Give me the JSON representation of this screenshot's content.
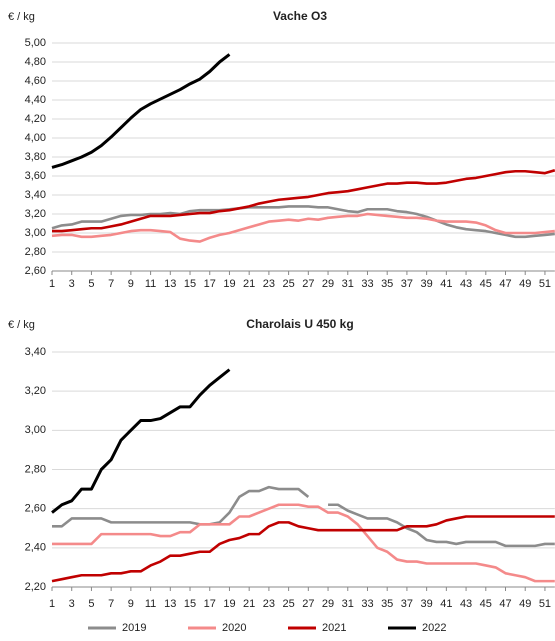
{
  "chart_data": [
    {
      "type": "line",
      "title": "Vache O3",
      "y_label": "€ / kg",
      "x": [
        1,
        2,
        3,
        4,
        5,
        6,
        7,
        8,
        9,
        10,
        11,
        12,
        13,
        14,
        15,
        16,
        17,
        18,
        19,
        20,
        21,
        22,
        23,
        24,
        25,
        26,
        27,
        28,
        29,
        30,
        31,
        32,
        33,
        34,
        35,
        36,
        37,
        38,
        39,
        40,
        41,
        42,
        43,
        44,
        45,
        46,
        47,
        48,
        49,
        50,
        51,
        52
      ],
      "xlim": [
        1,
        52
      ],
      "xticks": [
        1,
        3,
        5,
        7,
        9,
        11,
        13,
        15,
        17,
        19,
        21,
        23,
        25,
        27,
        29,
        31,
        33,
        35,
        37,
        39,
        41,
        43,
        45,
        47,
        49,
        51
      ],
      "ylim": [
        2.6,
        5.0
      ],
      "yticks": [
        {
          "value": 2.6,
          "label": "2,60"
        },
        {
          "value": 2.8,
          "label": "2,80"
        },
        {
          "value": 3.0,
          "label": "3,00"
        },
        {
          "value": 3.2,
          "label": "3,20"
        },
        {
          "value": 3.4,
          "label": "3,40"
        },
        {
          "value": 3.6,
          "label": "3,60"
        },
        {
          "value": 3.8,
          "label": "3,80"
        },
        {
          "value": 4.0,
          "label": "4,00"
        },
        {
          "value": 4.2,
          "label": "4,20"
        },
        {
          "value": 4.4,
          "label": "4,40"
        },
        {
          "value": 4.6,
          "label": "4,60"
        },
        {
          "value": 4.8,
          "label": "4,80"
        },
        {
          "value": 5.0,
          "label": "5,00"
        }
      ],
      "grid": true,
      "series": [
        {
          "color": "#8c8c8c",
          "values": [
            3.05,
            3.08,
            3.09,
            3.12,
            3.12,
            3.12,
            3.15,
            3.18,
            3.19,
            3.19,
            3.2,
            3.2,
            3.21,
            3.2,
            3.23,
            3.24,
            3.24,
            3.24,
            3.25,
            3.26,
            3.27,
            3.27,
            3.27,
            3.27,
            3.28,
            3.28,
            3.28,
            3.27,
            3.27,
            3.25,
            3.23,
            3.22,
            3.25,
            3.25,
            3.25,
            3.23,
            3.22,
            3.2,
            3.17,
            3.13,
            3.09,
            3.06,
            3.04,
            3.03,
            3.02,
            3.0,
            2.98,
            2.96,
            2.96,
            2.97,
            2.98,
            2.99
          ]
        },
        {
          "color": "#f48a8a",
          "values": [
            2.97,
            2.98,
            2.98,
            2.96,
            2.96,
            2.97,
            2.98,
            3.0,
            3.02,
            3.03,
            3.03,
            3.02,
            3.01,
            2.94,
            2.92,
            2.91,
            2.95,
            2.98,
            3.0,
            3.03,
            3.06,
            3.09,
            3.12,
            3.13,
            3.14,
            3.13,
            3.15,
            3.14,
            3.16,
            3.17,
            3.18,
            3.18,
            3.2,
            3.19,
            3.18,
            3.17,
            3.16,
            3.16,
            3.15,
            3.13,
            3.12,
            3.12,
            3.12,
            3.11,
            3.08,
            3.03,
            3.0,
            3.0,
            3.0,
            3.0,
            3.01,
            3.02
          ]
        },
        {
          "color": "#c00000",
          "values": [
            3.02,
            3.02,
            3.03,
            3.04,
            3.05,
            3.05,
            3.07,
            3.09,
            3.12,
            3.15,
            3.18,
            3.18,
            3.18,
            3.19,
            3.2,
            3.21,
            3.21,
            3.23,
            3.24,
            3.26,
            3.28,
            3.31,
            3.33,
            3.35,
            3.36,
            3.37,
            3.38,
            3.4,
            3.42,
            3.43,
            3.44,
            3.46,
            3.48,
            3.5,
            3.52,
            3.52,
            3.53,
            3.53,
            3.52,
            3.52,
            3.53,
            3.55,
            3.57,
            3.58,
            3.6,
            3.62,
            3.64,
            3.65,
            3.65,
            3.64,
            3.63,
            3.66
          ]
        },
        {
          "color": "#000000",
          "values": [
            3.69,
            3.72,
            3.76,
            3.8,
            3.85,
            3.92,
            4.01,
            4.11,
            4.21,
            4.3,
            4.36,
            4.41,
            4.46,
            4.51,
            4.57,
            4.62,
            4.7,
            4.8,
            4.88,
            null,
            null,
            null,
            null,
            null,
            null,
            null,
            null,
            null,
            null,
            null,
            null,
            null,
            null,
            null,
            null,
            null,
            null,
            null,
            null,
            null,
            null,
            null,
            null,
            null,
            null,
            null,
            null,
            null,
            null,
            null,
            null,
            null
          ]
        }
      ]
    },
    {
      "type": "line",
      "title": "Charolais  U 450 kg",
      "y_label": "€ / kg",
      "x": [
        1,
        2,
        3,
        4,
        5,
        6,
        7,
        8,
        9,
        10,
        11,
        12,
        13,
        14,
        15,
        16,
        17,
        18,
        19,
        20,
        21,
        22,
        23,
        24,
        25,
        26,
        27,
        28,
        29,
        30,
        31,
        32,
        33,
        34,
        35,
        36,
        37,
        38,
        39,
        40,
        41,
        42,
        43,
        44,
        45,
        46,
        47,
        48,
        49,
        50,
        51,
        52
      ],
      "xlim": [
        1,
        52
      ],
      "xticks": [
        1,
        3,
        5,
        7,
        9,
        11,
        13,
        15,
        17,
        19,
        21,
        23,
        25,
        27,
        29,
        31,
        33,
        35,
        37,
        39,
        41,
        43,
        45,
        47,
        49,
        51
      ],
      "ylim": [
        2.2,
        3.4
      ],
      "yticks": [
        {
          "value": 2.2,
          "label": "2,20"
        },
        {
          "value": 2.4,
          "label": "2,40"
        },
        {
          "value": 2.6,
          "label": "2,60"
        },
        {
          "value": 2.8,
          "label": "2,80"
        },
        {
          "value": 3.0,
          "label": "3,00"
        },
        {
          "value": 3.2,
          "label": "3,20"
        },
        {
          "value": 3.4,
          "label": "3,40"
        }
      ],
      "grid": true,
      "series": [
        {
          "name": "2019",
          "color": "#8c8c8c",
          "values": [
            2.51,
            2.51,
            2.55,
            2.55,
            2.55,
            2.55,
            2.53,
            2.53,
            2.53,
            2.53,
            2.53,
            2.53,
            2.53,
            2.53,
            2.53,
            2.52,
            2.52,
            2.53,
            2.58,
            2.66,
            2.69,
            2.69,
            2.71,
            2.7,
            2.7,
            2.7,
            2.66,
            null,
            2.62,
            2.62,
            2.59,
            2.57,
            2.55,
            2.55,
            2.55,
            2.53,
            2.5,
            2.48,
            2.44,
            2.43,
            2.43,
            2.42,
            2.43,
            2.43,
            2.43,
            2.43,
            2.41,
            2.41,
            2.41,
            2.41,
            2.42,
            2.42
          ]
        },
        {
          "name": "2020",
          "color": "#f48a8a",
          "values": [
            2.42,
            2.42,
            2.42,
            2.42,
            2.42,
            2.47,
            2.47,
            2.47,
            2.47,
            2.47,
            2.47,
            2.46,
            2.46,
            2.48,
            2.48,
            2.52,
            2.52,
            2.52,
            2.52,
            2.56,
            2.56,
            2.58,
            2.6,
            2.62,
            2.62,
            2.62,
            2.61,
            2.61,
            2.58,
            2.58,
            2.56,
            2.52,
            2.46,
            2.4,
            2.38,
            2.34,
            2.33,
            2.33,
            2.32,
            2.32,
            2.32,
            2.32,
            2.32,
            2.32,
            2.31,
            2.3,
            2.27,
            2.26,
            2.25,
            2.23,
            2.23,
            2.23
          ]
        },
        {
          "name": "2021",
          "color": "#c00000",
          "values": [
            2.23,
            2.24,
            2.25,
            2.26,
            2.26,
            2.26,
            2.27,
            2.27,
            2.28,
            2.28,
            2.31,
            2.33,
            2.36,
            2.36,
            2.37,
            2.38,
            2.38,
            2.42,
            2.44,
            2.45,
            2.47,
            2.47,
            2.51,
            2.53,
            2.53,
            2.51,
            2.5,
            2.49,
            2.49,
            2.49,
            2.49,
            2.49,
            2.49,
            2.49,
            2.49,
            2.49,
            2.51,
            2.51,
            2.51,
            2.52,
            2.54,
            2.55,
            2.56,
            2.56,
            2.56,
            2.56,
            2.56,
            2.56,
            2.56,
            2.56,
            2.56,
            2.56
          ]
        },
        {
          "name": "2022",
          "color": "#000000",
          "values": [
            2.58,
            2.62,
            2.64,
            2.7,
            2.7,
            2.8,
            2.85,
            2.95,
            3.0,
            3.05,
            3.05,
            3.06,
            3.09,
            3.12,
            3.12,
            3.18,
            3.23,
            3.27,
            3.31,
            null,
            null,
            null,
            null,
            null,
            null,
            null,
            null,
            null,
            null,
            null,
            null,
            null,
            null,
            null,
            null,
            null,
            null,
            null,
            null,
            null,
            null,
            null,
            null,
            null,
            null,
            null,
            null,
            null,
            null,
            null,
            null,
            null
          ]
        }
      ],
      "legend": "bottom"
    }
  ]
}
